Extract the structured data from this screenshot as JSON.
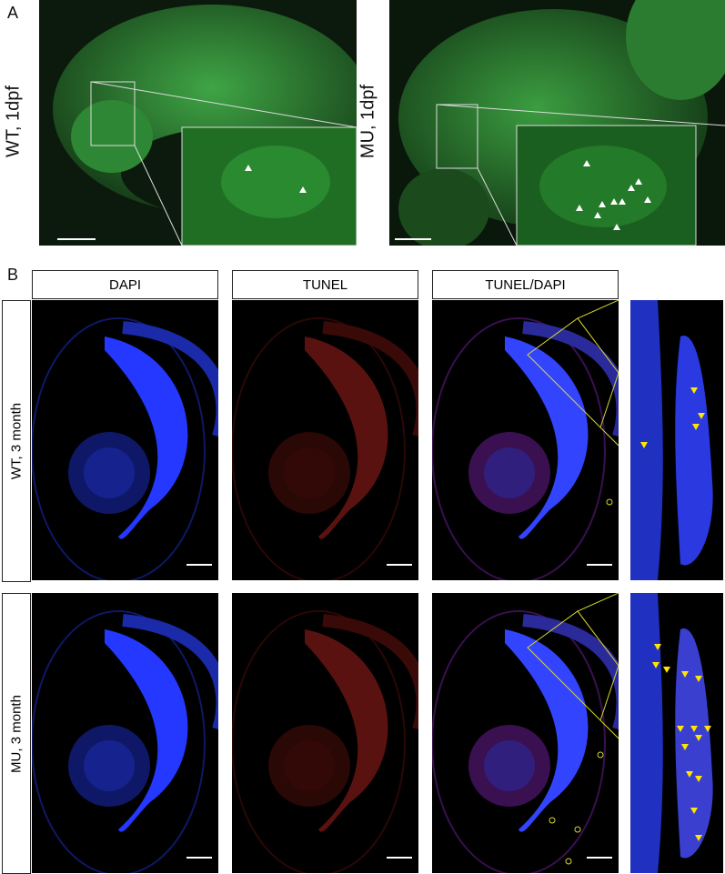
{
  "panel_a": {
    "letter": "A",
    "left_label": "WT, 1dpf",
    "right_label": "MU, 1dpf"
  },
  "panel_b": {
    "letter": "B",
    "columns": [
      "DAPI",
      "TUNEL",
      "TUNEL/DAPI"
    ],
    "rows": [
      "WT, 3 month",
      "MU, 3 month"
    ]
  },
  "colors": {
    "gfp": "#2fa83a",
    "dapi": "#2a3cff",
    "tunel": "#c0201a",
    "arrowhead": "#ffe600"
  }
}
